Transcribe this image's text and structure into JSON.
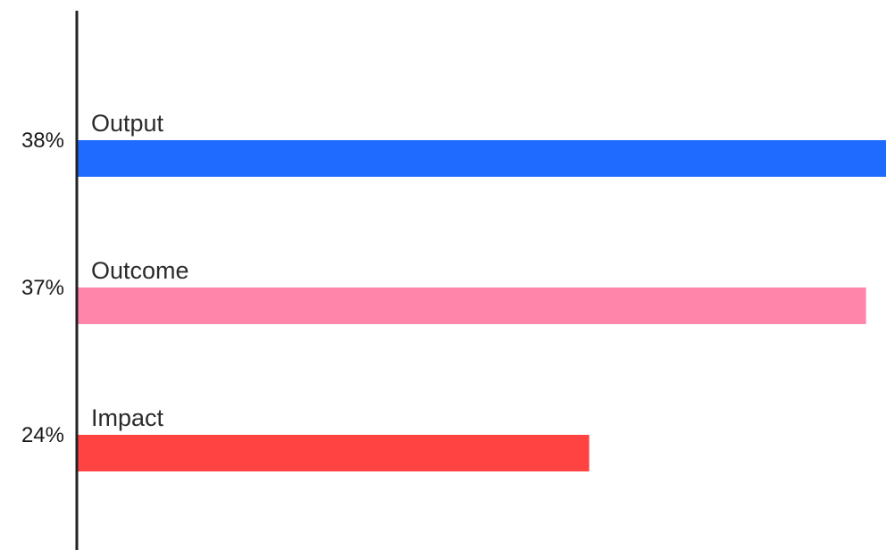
{
  "chart_data": {
    "type": "bar",
    "orientation": "horizontal",
    "categories": [
      "Output",
      "Outcome",
      "Impact"
    ],
    "values": [
      38,
      37,
      24
    ],
    "value_labels": [
      "38%",
      "37%",
      "24%"
    ],
    "colors": [
      "#1f6bff",
      "#ff85aa",
      "#ff4343"
    ],
    "title": "",
    "xlabel": "",
    "ylabel": "",
    "grid": false,
    "legend": "none"
  }
}
